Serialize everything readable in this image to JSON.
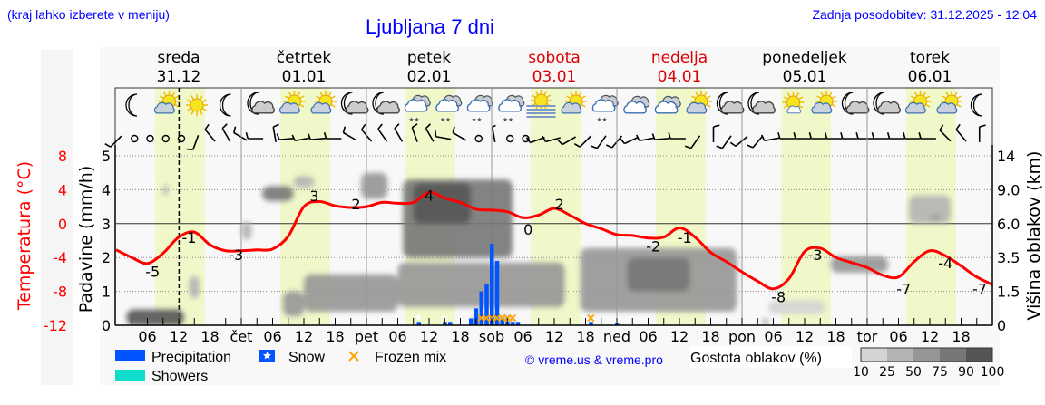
{
  "header": {
    "region_hint": "(kraj lahko izberete v meniju)",
    "title": "Ljubljana 7 dni",
    "last_update": "Zadnja posodobitev: 31.12.2025 - 12:04"
  },
  "colors": {
    "link_blue": "#0000ff",
    "temperature": "#ff0000",
    "weekend": "#dd0000",
    "precipitation": "#0055ff",
    "showers": "#11ddcc",
    "frozen_mix": "#ffa500",
    "daylight": "#f0f7c8",
    "background": "#f8f8f8"
  },
  "days": [
    {
      "name": "sreda",
      "date": "31.12",
      "abbr": "",
      "weekend": false
    },
    {
      "name": "četrtek",
      "date": "01.01",
      "abbr": "čet",
      "weekend": false
    },
    {
      "name": "petek",
      "date": "02.01",
      "abbr": "pet",
      "weekend": false
    },
    {
      "name": "sobota",
      "date": "03.01",
      "abbr": "sob",
      "weekend": true
    },
    {
      "name": "nedelja",
      "date": "04.01",
      "abbr": "ned",
      "weekend": true
    },
    {
      "name": "ponedeljek",
      "date": "05.01",
      "abbr": "pon",
      "weekend": false
    },
    {
      "name": "torek",
      "date": "06.01",
      "abbr": "tor",
      "weekend": false
    }
  ],
  "hour_ticks": [
    "06",
    "12",
    "18"
  ],
  "current_time": "31.12 12:04",
  "weather_icons": [
    "moon",
    "sun-cloud",
    "sun",
    "moon",
    "moon-cloud",
    "sun-cloud",
    "sun-cloud",
    "moon-cloud",
    "moon-cloud",
    "cloud-snow",
    "cloud-snow",
    "cloud-snow",
    "cloud-snow",
    "fog-sun",
    "sun-cloud",
    "cloud-snow",
    "overcast",
    "overcast",
    "sun-cloud",
    "moon-cloud",
    "moon-cloud",
    "sun-small-cloud",
    "sun-cloud",
    "moon-cloud",
    "moon-cloud",
    "sun-cloud",
    "sun-cloud",
    "moon"
  ],
  "wind": [
    {
      "dir": 225,
      "kt": 10
    },
    {
      "dir": 0,
      "kt": 0
    },
    {
      "dir": 0,
      "kt": 0
    },
    {
      "dir": 0,
      "kt": 0
    },
    {
      "dir": 0,
      "kt": 0
    },
    {
      "dir": 200,
      "kt": 10
    },
    {
      "dir": 320,
      "kt": 10
    },
    {
      "dir": 330,
      "kt": 10
    },
    {
      "dir": 300,
      "kt": 10
    },
    {
      "dir": 270,
      "kt": 10
    },
    {
      "dir": 350,
      "kt": 10
    },
    {
      "dir": 265,
      "kt": 10
    },
    {
      "dir": 260,
      "kt": 10
    },
    {
      "dir": 265,
      "kt": 10
    },
    {
      "dir": 270,
      "kt": 10
    },
    {
      "dir": 300,
      "kt": 10
    },
    {
      "dir": 320,
      "kt": 10
    },
    {
      "dir": 325,
      "kt": 10
    },
    {
      "dir": 330,
      "kt": 10
    },
    {
      "dir": 340,
      "kt": 10
    },
    {
      "dir": 330,
      "kt": 10
    },
    {
      "dir": 280,
      "kt": 10
    },
    {
      "dir": 300,
      "kt": 10
    },
    {
      "dir": 0,
      "kt": 0
    },
    {
      "dir": 350,
      "kt": 5
    },
    {
      "dir": 0,
      "kt": 0
    },
    {
      "dir": 0,
      "kt": 0
    },
    {
      "dir": 250,
      "kt": 10
    },
    {
      "dir": 255,
      "kt": 10
    },
    {
      "dir": 240,
      "kt": 10
    },
    {
      "dir": 225,
      "kt": 10
    },
    {
      "dir": 215,
      "kt": 10
    },
    {
      "dir": 220,
      "kt": 10
    },
    {
      "dir": 245,
      "kt": 10
    },
    {
      "dir": 260,
      "kt": 10
    },
    {
      "dir": 265,
      "kt": 10
    },
    {
      "dir": 270,
      "kt": 10
    },
    {
      "dir": 215,
      "kt": 10
    },
    {
      "dir": 0,
      "kt": 10
    },
    {
      "dir": 215,
      "kt": 10
    },
    {
      "dir": 230,
      "kt": 10
    },
    {
      "dir": 220,
      "kt": 10
    },
    {
      "dir": 260,
      "kt": 10
    },
    {
      "dir": 270,
      "kt": 10
    },
    {
      "dir": 270,
      "kt": 10
    },
    {
      "dir": 270,
      "kt": 10
    },
    {
      "dir": 270,
      "kt": 10
    },
    {
      "dir": 270,
      "kt": 10
    },
    {
      "dir": 270,
      "kt": 10
    },
    {
      "dir": 270,
      "kt": 10
    },
    {
      "dir": 270,
      "kt": 10
    },
    {
      "dir": 270,
      "kt": 10
    },
    {
      "dir": 270,
      "kt": 10
    },
    {
      "dir": 315,
      "kt": 10
    },
    {
      "dir": 320,
      "kt": 10
    },
    {
      "dir": 0,
      "kt": 10
    }
  ],
  "chart_data": {
    "type": "line",
    "title": "Ljubljana 7 dni",
    "left_axes": [
      {
        "label": "Temperatura (°C)",
        "ticks": [
          8,
          4,
          0,
          -4,
          -8,
          -12
        ],
        "range": [
          -12,
          8
        ]
      },
      {
        "label": "Padavine (mm/h)",
        "ticks": [
          5,
          4,
          3,
          2,
          1,
          0
        ],
        "range": [
          0,
          5
        ]
      }
    ],
    "right_axis": {
      "label": "Višina oblakov (km)",
      "ticks": [
        "14",
        "9.0",
        "6.0",
        "3.5",
        "1.5",
        "0"
      ],
      "values": [
        14,
        9,
        6,
        3.5,
        1.5,
        0
      ]
    },
    "grid": true,
    "temperature": {
      "times": [
        "31.12 00",
        "31.12 03",
        "31.12 06",
        "31.12 09",
        "31.12 12",
        "31.12 15",
        "31.12 18",
        "31.12 21",
        "01.01 00",
        "01.01 03",
        "01.01 06",
        "01.01 09",
        "01.01 12",
        "01.01 15",
        "01.01 18",
        "01.01 21",
        "02.01 00",
        "02.01 03",
        "02.01 06",
        "02.01 09",
        "02.01 12",
        "02.01 15",
        "02.01 18",
        "02.01 21",
        "03.01 00",
        "03.01 03",
        "03.01 06",
        "03.01 09",
        "03.01 12",
        "03.01 15",
        "03.01 18",
        "03.01 21",
        "04.01 00",
        "04.01 03",
        "04.01 06",
        "04.01 09",
        "04.01 12",
        "04.01 15",
        "04.01 18",
        "04.01 21",
        "05.01 00",
        "05.01 03",
        "05.01 06",
        "05.01 09",
        "05.01 12",
        "05.01 15",
        "05.01 18",
        "05.01 21",
        "06.01 00",
        "06.01 03",
        "06.01 06",
        "06.01 09",
        "06.01 12",
        "06.01 15",
        "06.01 18",
        "06.01 21",
        "07.01 00"
      ],
      "values": [
        -3.1,
        -4.0,
        -4.7,
        -3.5,
        -1.6,
        -1.0,
        -2.5,
        -3.2,
        -3.2,
        -3.1,
        -3.0,
        -1.5,
        2.0,
        2.6,
        2.1,
        1.9,
        2.0,
        2.5,
        2.4,
        2.5,
        3.7,
        3.0,
        2.5,
        1.7,
        1.6,
        1.4,
        0.7,
        1.0,
        1.8,
        1.0,
        0.0,
        -0.6,
        -1.3,
        -1.4,
        -1.7,
        -1.6,
        -0.5,
        -1.6,
        -3.4,
        -4.5,
        -5.7,
        -6.8,
        -7.7,
        -6.5,
        -3.3,
        -2.9,
        -4.0,
        -4.6,
        -5.2,
        -6.1,
        -6.3,
        -4.5,
        -3.2,
        -3.8,
        -5.0,
        -6.3,
        -7.2
      ],
      "labels": [
        {
          "time": "31.12 07",
          "text": "-5",
          "value": -5
        },
        {
          "time": "31.12 14",
          "text": "-1",
          "value": -1
        },
        {
          "time": "31.12 23",
          "text": "-3",
          "value": -3
        },
        {
          "time": "01.01 14",
          "text": "3",
          "value": 3
        },
        {
          "time": "01.01 22",
          "text": "2",
          "value": 2
        },
        {
          "time": "02.01 12",
          "text": "4",
          "value": 4
        },
        {
          "time": "03.01 07",
          "text": "0",
          "value": 0
        },
        {
          "time": "03.01 13",
          "text": "2",
          "value": 2
        },
        {
          "time": "04.01 07",
          "text": "-2",
          "value": -2
        },
        {
          "time": "04.01 13",
          "text": "-1",
          "value": -1
        },
        {
          "time": "05.01 07",
          "text": "-8",
          "value": -8
        },
        {
          "time": "05.01 14",
          "text": "-3",
          "value": -3
        },
        {
          "time": "06.01 07",
          "text": "-7",
          "value": -7
        },
        {
          "time": "06.01 15",
          "text": "-4",
          "value": -4
        },
        {
          "time": "07.01 00",
          "text": "-7",
          "value": -7
        }
      ]
    },
    "precipitation": [
      {
        "time": "02.01 10",
        "mm": 0.1,
        "snow": true
      },
      {
        "time": "02.01 15",
        "mm": 0.1,
        "snow": true
      },
      {
        "time": "02.01 16",
        "mm": 0.1,
        "snow": false
      },
      {
        "time": "02.01 20",
        "mm": 0.2,
        "snow": false
      },
      {
        "time": "02.01 21",
        "mm": 0.5,
        "snow": false
      },
      {
        "time": "02.01 22",
        "mm": 1.0,
        "snow": false
      },
      {
        "time": "02.01 23",
        "mm": 1.2,
        "snow": false
      },
      {
        "time": "03.01 00",
        "mm": 2.4,
        "snow": false
      },
      {
        "time": "03.01 01",
        "mm": 1.9,
        "snow": false
      },
      {
        "time": "03.01 02",
        "mm": 0.2,
        "snow": false
      },
      {
        "time": "03.01 03",
        "mm": 0.1,
        "snow": false
      },
      {
        "time": "03.01 04",
        "mm": 0.1,
        "snow": false
      },
      {
        "time": "03.01 05",
        "mm": 0.1,
        "snow": false
      },
      {
        "time": "03.01 19",
        "mm": 0.1,
        "snow": false
      },
      {
        "time": "04.01 00",
        "mm": 0.05,
        "snow": false
      }
    ],
    "frozen_mix": [
      "02.01 22",
      "02.01 23",
      "03.01 00",
      "03.01 01",
      "03.01 02",
      "03.01 03",
      "03.01 04",
      "03.01 19"
    ],
    "cloud_density": [
      {
        "from": "31.12 02",
        "to": "31.12 13",
        "km": [
          0,
          0.7
        ],
        "pct": 90
      },
      {
        "from": "31.12 09",
        "to": "31.12 10",
        "km": [
          8.5,
          9.8
        ],
        "pct": 25
      },
      {
        "from": "31.12 14",
        "to": "31.12 16",
        "km": [
          1.2,
          2.4
        ],
        "pct": 25
      },
      {
        "from": "01.01 00",
        "to": "01.01 02",
        "km": [
          4.8,
          6.2
        ],
        "pct": 25
      },
      {
        "from": "01.01 04",
        "to": "01.01 10",
        "km": [
          8.0,
          9.5
        ],
        "pct": 75
      },
      {
        "from": "01.01 10",
        "to": "01.01 14",
        "km": [
          9.3,
          11.0
        ],
        "pct": 25
      },
      {
        "from": "01.01 08",
        "to": "01.01 12",
        "km": [
          0.4,
          1.5
        ],
        "pct": 50
      },
      {
        "from": "01.01 12",
        "to": "02.01 06",
        "km": [
          0.6,
          2.5
        ],
        "pct": 50
      },
      {
        "from": "01.01 23",
        "to": "02.01 04",
        "km": [
          8.2,
          11.5
        ],
        "pct": 50
      },
      {
        "from": "02.01 07",
        "to": "03.01 04",
        "km": [
          3.5,
          10.5
        ],
        "pct": 75
      },
      {
        "from": "02.01 09",
        "to": "02.01 20",
        "km": [
          6.0,
          10.0
        ],
        "pct": 90
      },
      {
        "from": "02.01 06",
        "to": "03.01 14",
        "km": [
          0.8,
          3.2
        ],
        "pct": 50
      },
      {
        "from": "02.01 20",
        "to": "03.01 04",
        "km": [
          0,
          0.4
        ],
        "pct": 25
      },
      {
        "from": "03.01 17",
        "to": "04.01 23",
        "km": [
          0.6,
          4.2
        ],
        "pct": 50
      },
      {
        "from": "04.01 02",
        "to": "04.01 14",
        "km": [
          1.5,
          3.5
        ],
        "pct": 75
      },
      {
        "from": "05.01 04",
        "to": "05.01 05",
        "km": [
          0,
          0.3
        ],
        "pct": 50
      },
      {
        "from": "05.01 05",
        "to": "05.01 16",
        "km": [
          0.5,
          1.1
        ],
        "pct": 10
      },
      {
        "from": "05.01 17",
        "to": "06.01 04",
        "km": [
          2.6,
          3.6
        ],
        "pct": 50
      },
      {
        "from": "06.01 08",
        "to": "06.01 16",
        "km": [
          6.0,
          8.5
        ],
        "pct": 25
      },
      {
        "from": "06.01 12",
        "to": "06.01 14",
        "km": [
          6.3,
          6.8
        ],
        "pct": 50
      }
    ],
    "legend": {
      "precipitation": "Precipitation",
      "showers": "Showers",
      "snow": "Snow",
      "frozen_mix": "Frozen mix",
      "placement": "bottom"
    },
    "density_legend": {
      "title": "Gostota oblakov (%)",
      "levels": [
        "10",
        "25",
        "50",
        "75",
        "90",
        "100"
      ],
      "colors": [
        "#d4d4d4",
        "#b4b4b4",
        "#969696",
        "#777777",
        "#555555"
      ]
    }
  },
  "footer": {
    "copyright": "© vreme.us & vreme.pro"
  }
}
